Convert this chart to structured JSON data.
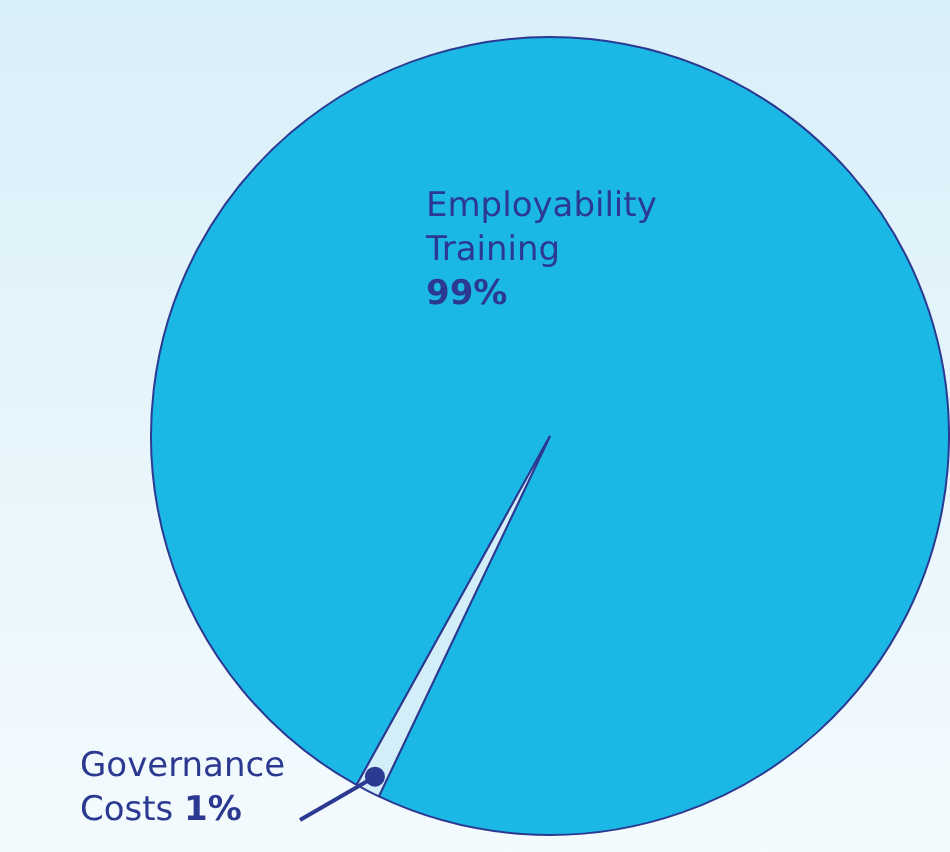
{
  "chart_data": {
    "type": "pie",
    "categories": [
      "Employability Training",
      "Governance Costs"
    ],
    "values": [
      99,
      1
    ],
    "colors": [
      "#1bb8e6",
      "#d4eef9"
    ],
    "value_labels": [
      "99%",
      "1%"
    ],
    "legend": false
  }
}
